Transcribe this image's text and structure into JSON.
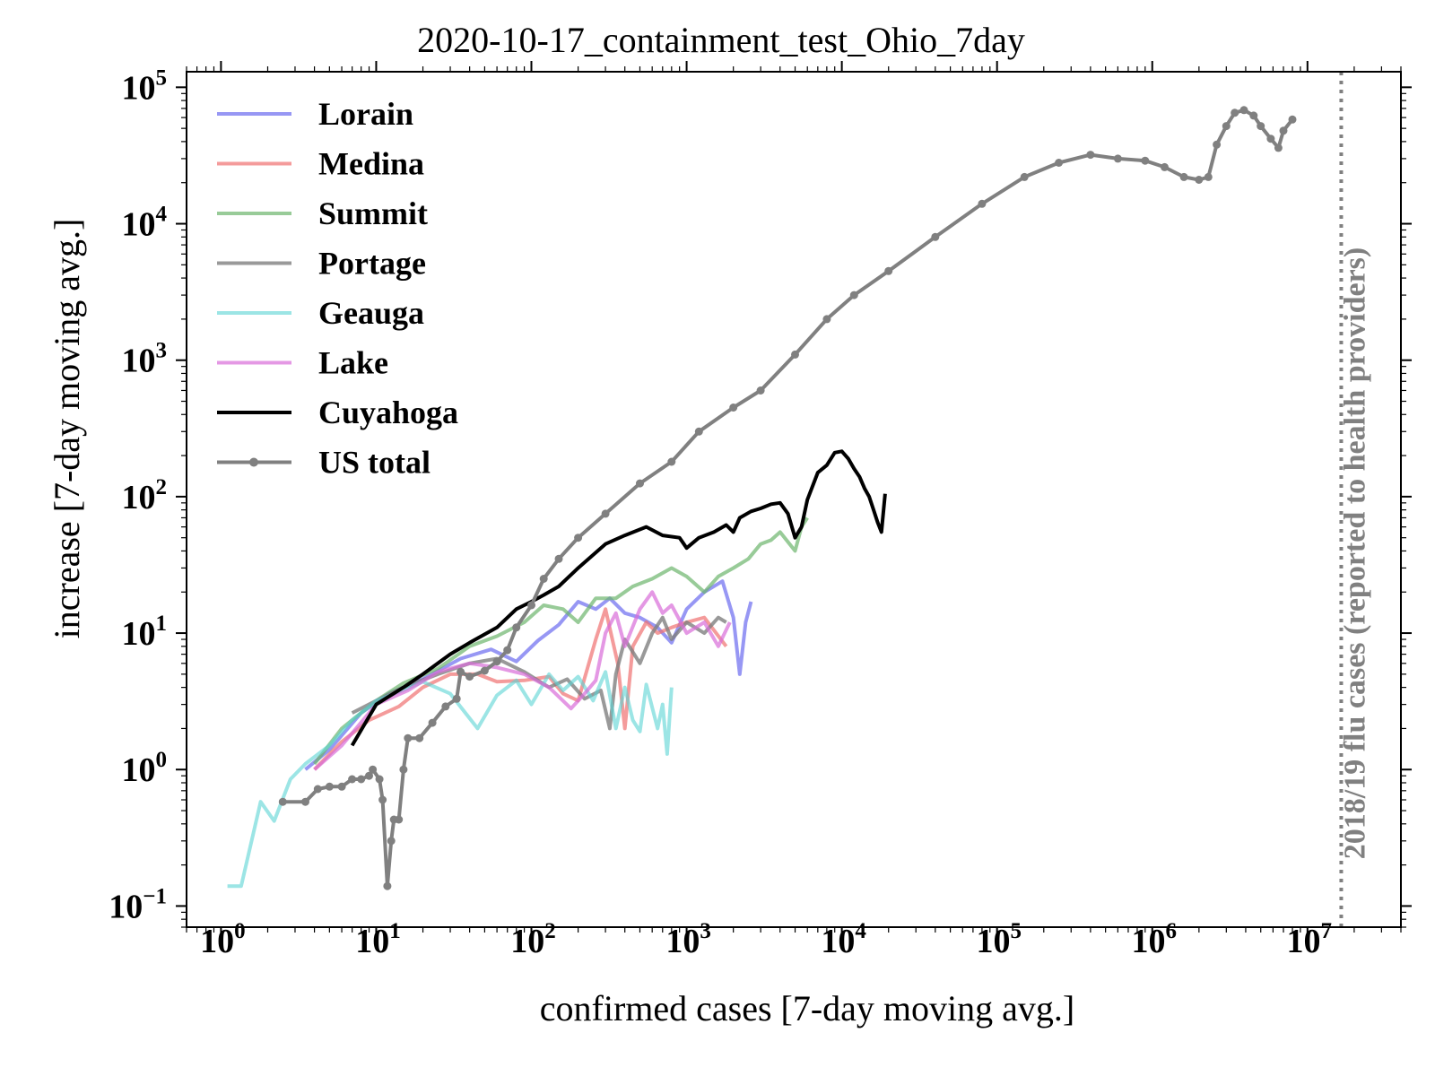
{
  "chart_data": {
    "type": "line",
    "title": "2020-10-17_containment_test_Ohio_7day",
    "xlabel": "confirmed cases [7-day moving avg.]",
    "ylabel": "increase [7-day moving avg.]",
    "xscale": "log",
    "yscale": "log",
    "xlim": [
      0.6,
      40000000
    ],
    "ylim": [
      0.07,
      130000
    ],
    "x_ticks": [
      "10^0",
      "10^1",
      "10^2",
      "10^3",
      "10^4",
      "10^5",
      "10^6",
      "10^7"
    ],
    "y_ticks": [
      "10^-1",
      "10^0",
      "10^1",
      "10^2",
      "10^3",
      "10^4",
      "10^5"
    ],
    "legend": {
      "position": "upper-left"
    },
    "reference_line": {
      "x": 16500000,
      "label": "2018/19 flu cases (reported to health providers)",
      "color": "#808080",
      "style": "dotted"
    },
    "series": [
      {
        "name": "Lorain",
        "color": "#6b6bf0",
        "opacity": 0.7,
        "points": [
          [
            3.5,
            1.0
          ],
          [
            5,
            1.4
          ],
          [
            8,
            2.6
          ],
          [
            12,
            3.6
          ],
          [
            20,
            4.6
          ],
          [
            35,
            6.5
          ],
          [
            55,
            7.6
          ],
          [
            80,
            6.2
          ],
          [
            110,
            8.8
          ],
          [
            150,
            11.5
          ],
          [
            200,
            17
          ],
          [
            260,
            15
          ],
          [
            320,
            18
          ],
          [
            400,
            14
          ],
          [
            500,
            13
          ],
          [
            650,
            11
          ],
          [
            800,
            8.5
          ],
          [
            1000,
            15
          ],
          [
            1300,
            20
          ],
          [
            1700,
            24
          ],
          [
            2000,
            13
          ],
          [
            2200,
            5
          ],
          [
            2400,
            12
          ],
          [
            2600,
            17
          ]
        ]
      },
      {
        "name": "Medina",
        "color": "#f07070",
        "opacity": 0.7,
        "points": [
          [
            4,
            1.0
          ],
          [
            6,
            1.6
          ],
          [
            9,
            2.3
          ],
          [
            14,
            2.9
          ],
          [
            20,
            4.0
          ],
          [
            30,
            5.0
          ],
          [
            45,
            5.0
          ],
          [
            60,
            4.4
          ],
          [
            90,
            4.5
          ],
          [
            130,
            4.8
          ],
          [
            160,
            3.6
          ],
          [
            200,
            3.2
          ],
          [
            260,
            9
          ],
          [
            300,
            15
          ],
          [
            360,
            6
          ],
          [
            400,
            2
          ],
          [
            450,
            8
          ],
          [
            550,
            12
          ],
          [
            650,
            10
          ],
          [
            800,
            11
          ],
          [
            1000,
            12
          ],
          [
            1300,
            13
          ],
          [
            1800,
            8
          ]
        ]
      },
      {
        "name": "Summit",
        "color": "#6cb56c",
        "opacity": 0.7,
        "points": [
          [
            4,
            1.1
          ],
          [
            6,
            2.0
          ],
          [
            10,
            3.2
          ],
          [
            15,
            4.3
          ],
          [
            25,
            5.5
          ],
          [
            40,
            8.0
          ],
          [
            60,
            9.5
          ],
          [
            90,
            12
          ],
          [
            120,
            16
          ],
          [
            160,
            15
          ],
          [
            200,
            12
          ],
          [
            260,
            18
          ],
          [
            350,
            18
          ],
          [
            450,
            22
          ],
          [
            600,
            25
          ],
          [
            800,
            30
          ],
          [
            1000,
            26
          ],
          [
            1300,
            20
          ],
          [
            1600,
            26
          ],
          [
            2000,
            30
          ],
          [
            2500,
            35
          ],
          [
            3000,
            45
          ],
          [
            3500,
            48
          ],
          [
            4000,
            55
          ],
          [
            5000,
            40
          ],
          [
            5500,
            60
          ],
          [
            6000,
            70
          ]
        ]
      },
      {
        "name": "Portage",
        "color": "#808080",
        "opacity": 0.8,
        "points": [
          [
            7,
            2.6
          ],
          [
            10,
            3.2
          ],
          [
            15,
            4.0
          ],
          [
            25,
            5.0
          ],
          [
            40,
            6.0
          ],
          [
            60,
            6.5
          ],
          [
            90,
            5.2
          ],
          [
            130,
            4.0
          ],
          [
            170,
            4.6
          ],
          [
            220,
            3.3
          ],
          [
            280,
            3.8
          ],
          [
            320,
            2.0
          ],
          [
            350,
            5
          ],
          [
            400,
            9
          ],
          [
            500,
            6
          ],
          [
            600,
            10
          ],
          [
            700,
            13
          ],
          [
            800,
            9
          ],
          [
            1000,
            12
          ],
          [
            1300,
            10
          ],
          [
            1600,
            13
          ],
          [
            1800,
            12
          ]
        ]
      },
      {
        "name": "Geauga",
        "color": "#5ad3d3",
        "opacity": 0.6,
        "points": [
          [
            1.1,
            0.14
          ],
          [
            1.35,
            0.14
          ],
          [
            1.8,
            0.58
          ],
          [
            2.2,
            0.42
          ],
          [
            2.8,
            0.85
          ],
          [
            3.5,
            1.1
          ],
          [
            5,
            1.5
          ],
          [
            7,
            2.3
          ],
          [
            10,
            3.2
          ],
          [
            14,
            3.7
          ],
          [
            20,
            4.4
          ],
          [
            30,
            3.6
          ],
          [
            45,
            2.0
          ],
          [
            60,
            3.5
          ],
          [
            80,
            4.5
          ],
          [
            100,
            3.0
          ],
          [
            130,
            5.0
          ],
          [
            160,
            3.8
          ],
          [
            200,
            4.8
          ],
          [
            250,
            3.2
          ],
          [
            300,
            5.2
          ],
          [
            350,
            2.0
          ],
          [
            400,
            4.0
          ],
          [
            450,
            2.3
          ],
          [
            500,
            1.9
          ],
          [
            550,
            4.2
          ],
          [
            650,
            2.0
          ],
          [
            700,
            3.0
          ],
          [
            750,
            1.3
          ],
          [
            800,
            4.0
          ]
        ]
      },
      {
        "name": "Lake",
        "color": "#d86cd8",
        "opacity": 0.7,
        "points": [
          [
            4,
            1.0
          ],
          [
            6,
            1.5
          ],
          [
            10,
            3.0
          ],
          [
            16,
            3.8
          ],
          [
            25,
            5.2
          ],
          [
            40,
            6.0
          ],
          [
            60,
            5.6
          ],
          [
            90,
            5.0
          ],
          [
            130,
            4.0
          ],
          [
            180,
            2.8
          ],
          [
            220,
            3.6
          ],
          [
            260,
            4.5
          ],
          [
            300,
            10
          ],
          [
            350,
            14
          ],
          [
            400,
            8
          ],
          [
            500,
            15
          ],
          [
            600,
            20
          ],
          [
            700,
            14
          ],
          [
            800,
            16
          ],
          [
            1000,
            10
          ],
          [
            1300,
            12
          ],
          [
            1600,
            8
          ],
          [
            1900,
            12
          ]
        ]
      },
      {
        "name": "Cuyahoga",
        "color": "#000000",
        "opacity": 1.0,
        "points": [
          [
            7,
            1.5
          ],
          [
            10,
            3.0
          ],
          [
            15,
            4.0
          ],
          [
            20,
            5.0
          ],
          [
            30,
            7.0
          ],
          [
            40,
            8.5
          ],
          [
            60,
            11
          ],
          [
            80,
            15
          ],
          [
            100,
            17
          ],
          [
            120,
            19
          ],
          [
            150,
            22
          ],
          [
            200,
            30
          ],
          [
            300,
            45
          ],
          [
            400,
            52
          ],
          [
            550,
            60
          ],
          [
            700,
            52
          ],
          [
            900,
            50
          ],
          [
            1000,
            42
          ],
          [
            1200,
            50
          ],
          [
            1500,
            55
          ],
          [
            1800,
            62
          ],
          [
            2000,
            55
          ],
          [
            2200,
            70
          ],
          [
            2600,
            78
          ],
          [
            3000,
            82
          ],
          [
            3500,
            88
          ],
          [
            4000,
            90
          ],
          [
            4500,
            75
          ],
          [
            5000,
            50
          ],
          [
            5500,
            60
          ],
          [
            6000,
            95
          ],
          [
            7000,
            150
          ],
          [
            8000,
            170
          ],
          [
            9000,
            210
          ],
          [
            10000,
            215
          ],
          [
            11000,
            190
          ],
          [
            12000,
            160
          ],
          [
            13000,
            140
          ],
          [
            14000,
            115
          ],
          [
            15000,
            100
          ],
          [
            16000,
            80
          ],
          [
            17000,
            65
          ],
          [
            18000,
            55
          ],
          [
            19000,
            105
          ]
        ]
      },
      {
        "name": "US total",
        "color": "#808080",
        "opacity": 1.0,
        "markers": true,
        "points": [
          [
            2.5,
            0.58
          ],
          [
            3.5,
            0.58
          ],
          [
            4.2,
            0.72
          ],
          [
            5,
            0.75
          ],
          [
            6,
            0.75
          ],
          [
            7,
            0.85
          ],
          [
            8,
            0.85
          ],
          [
            9,
            0.9
          ],
          [
            9.5,
            1.0
          ],
          [
            10.5,
            0.85
          ],
          [
            11,
            0.6
          ],
          [
            11.8,
            0.14
          ],
          [
            12.5,
            0.3
          ],
          [
            13,
            0.43
          ],
          [
            14,
            0.43
          ],
          [
            15,
            1.0
          ],
          [
            16,
            1.7
          ],
          [
            19,
            1.7
          ],
          [
            23,
            2.2
          ],
          [
            28,
            2.9
          ],
          [
            33,
            3.3
          ],
          [
            35,
            5.2
          ],
          [
            40,
            4.8
          ],
          [
            50,
            5.3
          ],
          [
            60,
            6.2
          ],
          [
            70,
            7.5
          ],
          [
            80,
            11
          ],
          [
            100,
            16
          ],
          [
            120,
            25
          ],
          [
            150,
            35
          ],
          [
            200,
            50
          ],
          [
            300,
            75
          ],
          [
            500,
            125
          ],
          [
            800,
            180
          ],
          [
            1200,
            300
          ],
          [
            2000,
            450
          ],
          [
            3000,
            600
          ],
          [
            5000,
            1100
          ],
          [
            8000,
            2000
          ],
          [
            12000,
            3000
          ],
          [
            20000,
            4500
          ],
          [
            40000,
            8000
          ],
          [
            80000,
            14000
          ],
          [
            150000,
            22000
          ],
          [
            250000,
            28000
          ],
          [
            400000,
            32000
          ],
          [
            600000,
            30000
          ],
          [
            900000,
            29000
          ],
          [
            1200000,
            26000
          ],
          [
            1600000,
            22000
          ],
          [
            2000000,
            21000
          ],
          [
            2300000,
            22000
          ],
          [
            2600000,
            38000
          ],
          [
            3000000,
            52000
          ],
          [
            3400000,
            65000
          ],
          [
            3900000,
            68000
          ],
          [
            4500000,
            62000
          ],
          [
            5000000,
            52000
          ],
          [
            5800000,
            42000
          ],
          [
            6500000,
            36000
          ],
          [
            7000000,
            48000
          ],
          [
            8000000,
            58000
          ]
        ]
      }
    ]
  }
}
